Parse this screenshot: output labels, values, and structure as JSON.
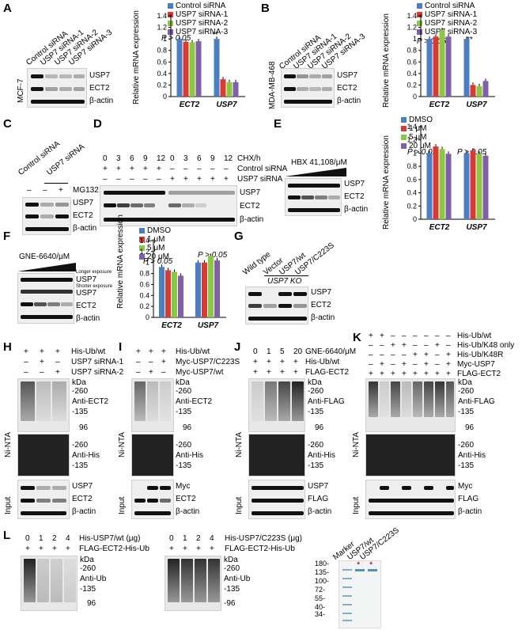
{
  "panels": {
    "A": "A",
    "B": "B",
    "C": "C",
    "D": "D",
    "E": "E",
    "F": "F",
    "G": "G",
    "H": "H",
    "I": "I",
    "J": "J",
    "K": "K",
    "L": "L"
  },
  "colors": {
    "blue": "#4a7ec7",
    "red": "#d83a35",
    "green": "#8dc63f",
    "purple": "#8060a8"
  },
  "blot_labels": {
    "usp7": "USP7",
    "ect2": "ECT2",
    "actin": "β-actin",
    "myc": "Myc",
    "flag": "FLAG",
    "anti_ect2": "Anti-ECT2",
    "anti_his": "Anti-His",
    "anti_flag": "Anti-FLAG",
    "anti_ub": "Anti-Ub",
    "kda": "kDa",
    "k260": "-260",
    "k135": "-135",
    "k96": "96",
    "k96b": "-96",
    "ni_nta": "Ni-NTA",
    "input": "Input",
    "mcf7": "MCF-7",
    "mda": "MDA-MB-468",
    "longer": "Longer exposure",
    "shorter": "Shorter exposure"
  },
  "A": {
    "lanes": [
      "Control siRNA",
      "USP7 siRNA-1",
      "USP7 siRNA-2",
      "USP7 siRNA-3"
    ],
    "legend": [
      "Control siRNA",
      "USP7 siRNA-1",
      "USP7 siRNA-2",
      "USP7 siRNA-3"
    ],
    "p": "P > 0.05",
    "sig": "**",
    "ylabel": "Relative mRNA expression"
  },
  "B": {
    "lanes": [
      "Control siRNA",
      "USP7 siRNA-1",
      "USP7 siRNA-2",
      "USP7 siRNA-3"
    ],
    "legend": [
      "Control siRNA",
      "USP7 siRNA-1",
      "USP7 siRNA-2",
      "USP7 siRNA-3"
    ],
    "p": "P > 0.05",
    "sig": "**",
    "ylabel": "Relative mRNA expression"
  },
  "C": {
    "lanes": [
      "Control siRNA",
      "USP7 siRNA"
    ],
    "mg132": "MG132",
    "signs": [
      "–",
      "–",
      "+"
    ]
  },
  "D": {
    "chx": "CHX/h",
    "times": [
      "0",
      "3",
      "6",
      "9",
      "12",
      "0",
      "3",
      "6",
      "9",
      "12"
    ],
    "ctrl": "Control siRNA",
    "usp7si": "USP7 siRNA",
    "ctrl_signs": [
      "+",
      "+",
      "+",
      "+",
      "+",
      "–",
      "–",
      "–",
      "–",
      "–"
    ],
    "usp_signs": [
      "–",
      "–",
      "–",
      "–",
      "–",
      "+",
      "+",
      "+",
      "+",
      "+"
    ]
  },
  "E": {
    "drug": "HBX 41,108/μM",
    "legend": [
      "DMSO",
      "1 μM",
      "5 μM",
      "20 μM"
    ],
    "p": "P > 0.05",
    "ylabel": "Relative mRNA expression"
  },
  "F": {
    "drug": "GNE-6640/μM",
    "legend": [
      "DMSO",
      "1 μM",
      "5 μM",
      "20 μM"
    ],
    "p": "P > 0.05",
    "ylabel": "Relative mRNA expression"
  },
  "G": {
    "lanes": [
      "Wild type",
      "Vector",
      "USP7/wt",
      "USP7/C223S"
    ],
    "ko": "USP7 KO"
  },
  "H": {
    "rows": [
      "His-Ub/wt",
      "USP7 siRNA-1",
      "USP7 siRNA-2"
    ],
    "signs": [
      [
        "+",
        "+",
        "+"
      ],
      [
        "–",
        "+",
        "–"
      ],
      [
        "–",
        "–",
        "+"
      ]
    ]
  },
  "I": {
    "rows": [
      "His-Ub/wt",
      "Myc-USP7/C223S",
      "Myc-USP7/wt"
    ],
    "signs": [
      [
        "+",
        "+",
        "+"
      ],
      [
        "–",
        "–",
        "+"
      ],
      [
        "–",
        "+",
        "–"
      ]
    ]
  },
  "J": {
    "rows": [
      "GNE-6640/μM",
      "His-Ub/wt",
      "FLAG-ECT2"
    ],
    "signs": [
      [
        "0",
        "1",
        "5",
        "20"
      ],
      [
        "+",
        "+",
        "+",
        "+"
      ],
      [
        "+",
        "+",
        "+",
        "+"
      ]
    ]
  },
  "K": {
    "rows": [
      "His-Ub/wt",
      "His-Ub/K48 only",
      "His-Ub/K48R",
      "Myc-USP7",
      "FLAG-ECT2"
    ],
    "signs": [
      [
        "+",
        "+",
        "–",
        "–",
        "–",
        "–",
        "–",
        "–"
      ],
      [
        "–",
        "–",
        "+",
        "+",
        "–",
        "–",
        "+",
        "–"
      ],
      [
        "–",
        "–",
        "–",
        "–",
        "+",
        "+",
        "–",
        "+"
      ],
      [
        "–",
        "+",
        "–",
        "+",
        "–",
        "+",
        "–",
        "+"
      ],
      [
        "+",
        "+",
        "+",
        "+",
        "+",
        "+",
        "+",
        "+"
      ]
    ]
  },
  "L": {
    "wt_row": "His-USP7/wt (μg)",
    "c223s_row": "His-USP7/C223S (μg)",
    "sub_row": "FLAG-ECT2-His-Ub",
    "doses": [
      "0",
      "1",
      "2",
      "4"
    ],
    "plus": [
      "+",
      "+",
      "+",
      "+"
    ],
    "gel_lanes": [
      "Marker",
      "USP7/wt",
      "USP7/C223S"
    ],
    "markers": [
      "180-",
      "135-",
      "100-",
      "72-",
      "55-",
      "40-",
      "34-"
    ],
    "star": "*"
  },
  "chart_data": [
    {
      "type": "bar",
      "panel": "A",
      "categories": [
        "ECT2",
        "USP7"
      ],
      "ylabel": "Relative mRNA expression",
      "ylim": [
        0,
        1.4
      ],
      "yticks": [
        "0",
        "0.2",
        "0.4",
        "0.6",
        "0.8",
        "1",
        "1.2",
        "1.4"
      ],
      "series": [
        {
          "name": "Control siRNA",
          "values": [
            1.0,
            1.0
          ]
        },
        {
          "name": "USP7 siRNA-1",
          "values": [
            0.95,
            0.3
          ]
        },
        {
          "name": "USP7 siRNA-2",
          "values": [
            0.94,
            0.25
          ]
        },
        {
          "name": "USP7 siRNA-3",
          "values": [
            0.96,
            0.25
          ]
        }
      ]
    },
    {
      "type": "bar",
      "panel": "B",
      "categories": [
        "ECT2",
        "USP7"
      ],
      "ylabel": "Relative mRNA expression",
      "ylim": [
        0,
        1.4
      ],
      "yticks": [
        "0",
        "0.2",
        "0.4",
        "0.6",
        "0.8",
        "1",
        "1.2",
        "1.4"
      ],
      "series": [
        {
          "name": "Control siRNA",
          "values": [
            1.0,
            1.0
          ]
        },
        {
          "name": "USP7 siRNA-1",
          "values": [
            1.04,
            0.2
          ]
        },
        {
          "name": "USP7 siRNA-2",
          "values": [
            1.15,
            0.18
          ]
        },
        {
          "name": "USP7 siRNA-3",
          "values": [
            1.04,
            0.27
          ]
        }
      ]
    },
    {
      "type": "bar",
      "panel": "E",
      "categories": [
        "ECT2",
        "USP7"
      ],
      "ylabel": "Relative mRNA expression",
      "ylim": [
        0,
        1.4
      ],
      "yticks": [
        "0",
        "0.2",
        "0.4",
        "0.6",
        "0.8",
        "1",
        "1.2",
        "1.4"
      ],
      "series": [
        {
          "name": "DMSO",
          "values": [
            1.0,
            1.0
          ]
        },
        {
          "name": "1 μM",
          "values": [
            1.1,
            1.04
          ]
        },
        {
          "name": "5 μM",
          "values": [
            1.06,
            0.99
          ]
        },
        {
          "name": "20 μM",
          "values": [
            0.99,
            0.96
          ]
        }
      ]
    },
    {
      "type": "bar",
      "panel": "F",
      "categories": [
        "ECT2",
        "USP7"
      ],
      "ylabel": "Relative mRNA expression",
      "ylim": [
        0,
        1.4
      ],
      "yticks": [
        "0",
        "0.2",
        "0.4",
        "0.6",
        "0.8",
        "1",
        "1.2",
        "1.4"
      ],
      "series": [
        {
          "name": "DMSO",
          "values": [
            0.92,
            1.0
          ]
        },
        {
          "name": "1 μM",
          "values": [
            0.86,
            1.0
          ]
        },
        {
          "name": "5 μM",
          "values": [
            0.83,
            1.12
          ]
        },
        {
          "name": "20 μM",
          "values": [
            0.76,
            1.04
          ]
        }
      ]
    }
  ]
}
